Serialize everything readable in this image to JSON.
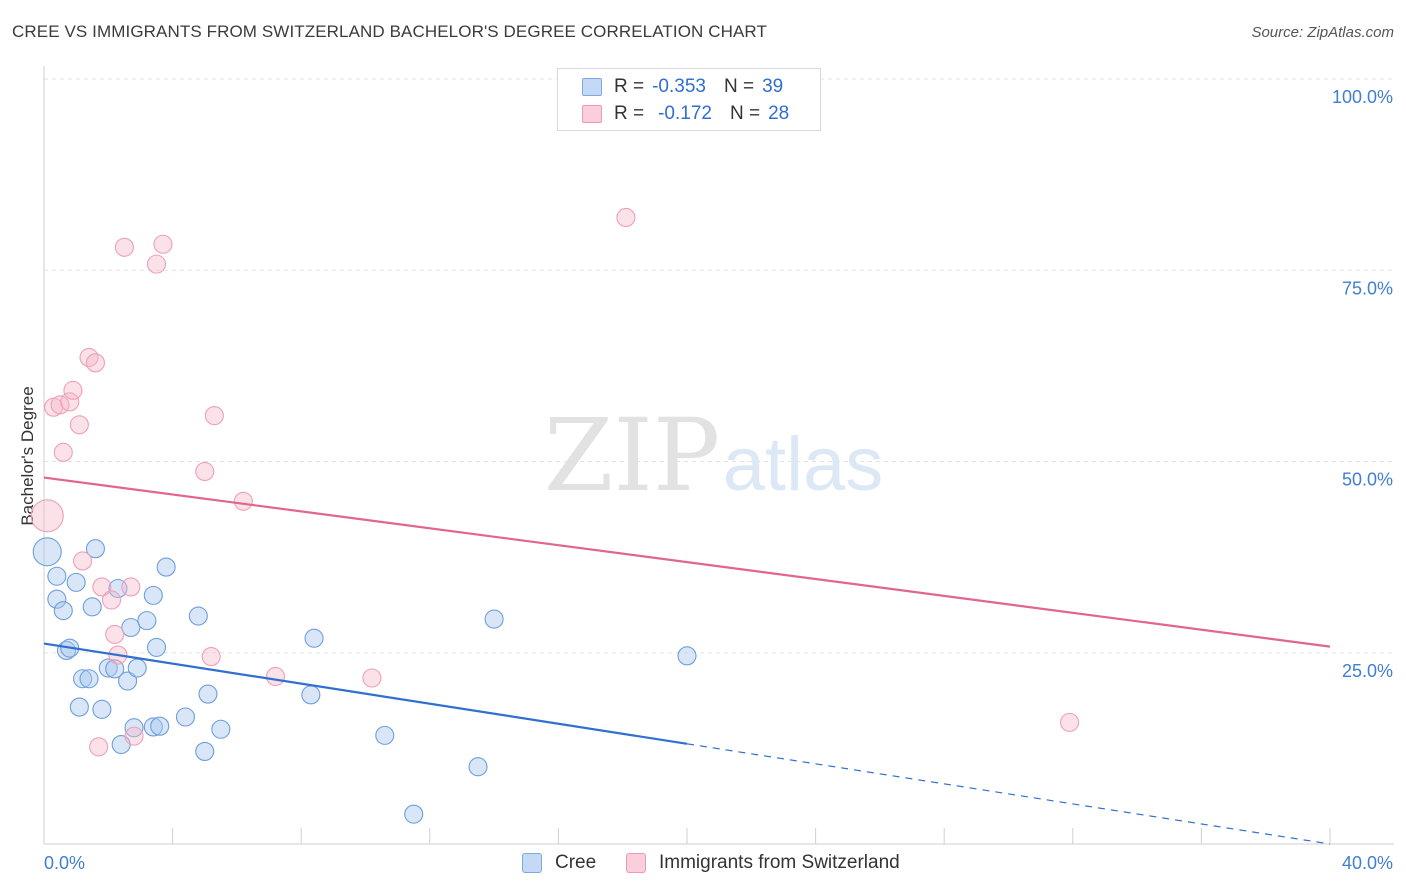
{
  "header": {
    "title": "CREE VS IMMIGRANTS FROM SWITZERLAND BACHELOR'S DEGREE CORRELATION CHART",
    "source": "Source: ZipAtlas.com"
  },
  "watermark": {
    "zip": "ZIP",
    "atlas": "atlas"
  },
  "legend_top": {
    "rows": [
      {
        "r_label": "R =",
        "r_value": "-0.353",
        "n_label": "N =",
        "n_value": "39"
      },
      {
        "r_label": "R =",
        "r_value": "-0.172",
        "n_label": "N =",
        "n_value": "28"
      }
    ]
  },
  "legend_bottom": {
    "items": [
      "Cree",
      "Immigrants from Switzerland"
    ]
  },
  "chart_data": {
    "type": "scatter",
    "title": "CREE VS IMMIGRANTS FROM SWITZERLAND BACHELOR'S DEGREE CORRELATION CHART",
    "xlabel": "",
    "ylabel": "Bachelor's Degree",
    "xlim": [
      0,
      40
    ],
    "ylim": [
      0,
      100
    ],
    "x_tick_labels": [
      "0.0%",
      "40.0%"
    ],
    "y_tick_labels": [
      "100.0%",
      "75.0%",
      "50.0%",
      "25.0%"
    ],
    "y_ticks": [
      100,
      75,
      50,
      25
    ],
    "grid": true,
    "colors": {
      "cree": "#a9c8ee",
      "cree_line": "#2f6fd0",
      "swiss": "#f4b6c8",
      "swiss_line": "#e0658f",
      "axis_text": "#3f7fd1"
    },
    "series": [
      {
        "name": "Cree",
        "r": -0.353,
        "n": 39,
        "trend": {
          "x0": 0,
          "y0": 26.2,
          "x1": 20,
          "y1": 13.1,
          "dashed_to_x": 40,
          "dashed_to_y": 0
        },
        "points": [
          [
            0.1,
            38.2,
            14
          ],
          [
            0.4,
            32.0,
            9
          ],
          [
            0.4,
            35.0,
            9
          ],
          [
            0.6,
            30.5,
            9
          ],
          [
            0.7,
            25.3,
            9
          ],
          [
            0.8,
            25.6,
            9
          ],
          [
            1.0,
            34.2,
            9
          ],
          [
            1.1,
            17.9,
            9
          ],
          [
            1.2,
            21.6,
            9
          ],
          [
            1.4,
            21.6,
            9
          ],
          [
            1.5,
            31.0,
            9
          ],
          [
            1.6,
            38.6,
            9
          ],
          [
            1.8,
            17.6,
            9
          ],
          [
            2.0,
            23.0,
            9
          ],
          [
            2.2,
            22.9,
            9
          ],
          [
            2.3,
            33.4,
            9
          ],
          [
            2.4,
            13.0,
            9
          ],
          [
            2.6,
            21.3,
            9
          ],
          [
            2.7,
            28.3,
            9
          ],
          [
            2.8,
            15.2,
            9
          ],
          [
            2.9,
            23.0,
            9
          ],
          [
            3.2,
            29.2,
            9
          ],
          [
            3.4,
            32.5,
            9
          ],
          [
            3.4,
            15.3,
            9
          ],
          [
            3.5,
            25.7,
            9
          ],
          [
            3.6,
            15.4,
            9
          ],
          [
            3.8,
            36.2,
            9
          ],
          [
            4.4,
            16.6,
            9
          ],
          [
            4.8,
            29.8,
            9
          ],
          [
            5.0,
            12.1,
            9
          ],
          [
            5.1,
            19.6,
            9
          ],
          [
            5.5,
            15.0,
            9
          ],
          [
            8.3,
            19.5,
            9
          ],
          [
            8.4,
            26.9,
            9
          ],
          [
            10.6,
            14.2,
            9
          ],
          [
            11.5,
            3.9,
            9
          ],
          [
            13.5,
            10.1,
            9
          ],
          [
            14.0,
            29.4,
            9
          ],
          [
            20.0,
            24.6,
            9
          ]
        ]
      },
      {
        "name": "Immigrants from Switzerland",
        "r": -0.172,
        "n": 28,
        "trend": {
          "x0": 0,
          "y0": 47.9,
          "x1": 40,
          "y1": 25.8
        },
        "points": [
          [
            0.1,
            42.9,
            16
          ],
          [
            0.3,
            57.1,
            9
          ],
          [
            0.5,
            57.4,
            9
          ],
          [
            0.6,
            51.2,
            9
          ],
          [
            0.8,
            57.8,
            9
          ],
          [
            0.9,
            59.3,
            9
          ],
          [
            1.1,
            54.8,
            9
          ],
          [
            1.2,
            37.0,
            9
          ],
          [
            1.4,
            63.6,
            9
          ],
          [
            1.6,
            62.9,
            9
          ],
          [
            1.7,
            12.7,
            9
          ],
          [
            1.8,
            33.6,
            9
          ],
          [
            2.1,
            31.9,
            9
          ],
          [
            2.2,
            27.4,
            9
          ],
          [
            2.3,
            24.7,
            9
          ],
          [
            2.5,
            78.0,
            9
          ],
          [
            2.7,
            33.6,
            9
          ],
          [
            2.8,
            14.1,
            9
          ],
          [
            3.5,
            75.8,
            9
          ],
          [
            3.7,
            78.4,
            9
          ],
          [
            5.0,
            48.7,
            9
          ],
          [
            5.2,
            24.5,
            9
          ],
          [
            5.3,
            56.0,
            9
          ],
          [
            6.2,
            44.8,
            9
          ],
          [
            7.2,
            21.9,
            9
          ],
          [
            10.2,
            21.7,
            9
          ],
          [
            18.1,
            81.9,
            9
          ],
          [
            31.9,
            15.9,
            9
          ]
        ]
      }
    ]
  }
}
